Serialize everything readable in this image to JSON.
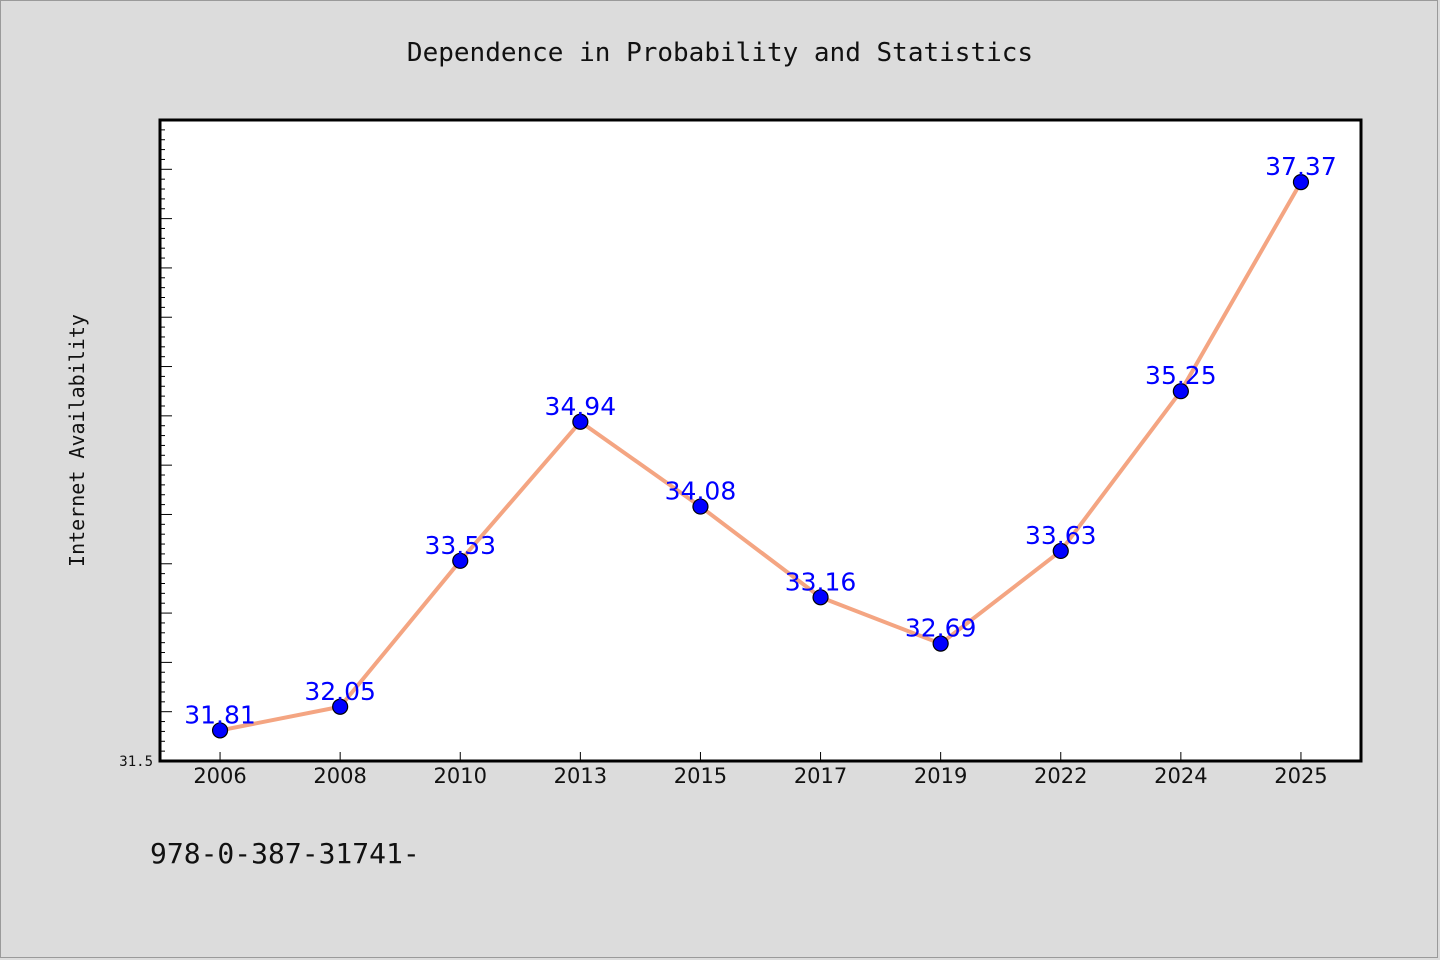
{
  "chart_data": {
    "type": "line",
    "title": "Dependence in Probability and Statistics",
    "xlabel": "",
    "ylabel": "Internet Availability",
    "categories": [
      "2006",
      "2008",
      "2010",
      "2013",
      "2015",
      "2017",
      "2019",
      "2022",
      "2024",
      "2025"
    ],
    "series": [
      {
        "values": [
          31.81,
          32.05,
          33.53,
          34.94,
          34.08,
          33.16,
          32.69,
          33.63,
          35.25,
          37.37
        ],
        "data_labels": [
          "31.81",
          "32.05",
          "33.53",
          "34.94",
          "34.08",
          "33.16",
          "32.69",
          "33.63",
          "35.25",
          "37.37"
        ]
      }
    ],
    "ylim": [
      31.5,
      38.0
    ],
    "y_tick_labels": [
      "31.5"
    ],
    "grid": false,
    "legend": "none",
    "colors": {
      "line": "#f4a582",
      "marker": "#0000ff",
      "data_label": "#0000ff",
      "plot_background": "#ffffff",
      "page_background": "#dcdcdc"
    }
  },
  "footer_text": "978-0-387-31741-"
}
